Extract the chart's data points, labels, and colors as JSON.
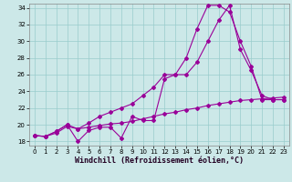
{
  "xlabel": "Windchill (Refroidissement éolien,°C)",
  "bg_color": "#cce8e8",
  "grid_color": "#99cccc",
  "line_color": "#990099",
  "xlim": [
    -0.5,
    23.5
  ],
  "ylim": [
    17.5,
    34.5
  ],
  "xticks": [
    0,
    1,
    2,
    3,
    4,
    5,
    6,
    7,
    8,
    9,
    10,
    11,
    12,
    13,
    14,
    15,
    16,
    17,
    18,
    19,
    20,
    21,
    22,
    23
  ],
  "yticks": [
    18,
    20,
    22,
    24,
    26,
    28,
    30,
    32,
    34
  ],
  "line1_x": [
    0,
    1,
    2,
    3,
    4,
    5,
    6,
    7,
    8,
    9,
    10,
    11,
    12,
    13,
    14,
    15,
    16,
    17,
    18,
    19,
    20,
    21,
    22,
    23
  ],
  "line1_y": [
    18.7,
    18.6,
    19.2,
    20.0,
    18.0,
    19.3,
    19.7,
    19.7,
    18.4,
    21.0,
    20.5,
    20.5,
    25.5,
    26.0,
    28.0,
    31.5,
    34.3,
    34.3,
    33.5,
    30.0,
    27.0,
    23.0,
    23.0,
    23.0
  ],
  "line2_x": [
    0,
    1,
    2,
    3,
    4,
    5,
    6,
    7,
    8,
    9,
    10,
    11,
    12,
    13,
    14,
    15,
    16,
    17,
    18,
    19,
    20,
    21,
    22,
    23
  ],
  "line2_y": [
    18.7,
    18.6,
    19.2,
    20.0,
    19.5,
    20.2,
    21.0,
    21.5,
    22.0,
    22.5,
    23.5,
    24.5,
    26.0,
    26.0,
    26.0,
    27.5,
    30.0,
    32.5,
    34.3,
    29.0,
    26.5,
    23.5,
    23.0,
    23.0
  ],
  "line3_x": [
    0,
    1,
    2,
    3,
    4,
    5,
    6,
    7,
    8,
    9,
    10,
    11,
    12,
    13,
    14,
    15,
    16,
    17,
    18,
    19,
    20,
    21,
    22,
    23
  ],
  "line3_y": [
    18.7,
    18.6,
    19.0,
    19.8,
    19.5,
    19.7,
    19.9,
    20.1,
    20.2,
    20.4,
    20.7,
    21.0,
    21.3,
    21.5,
    21.8,
    22.0,
    22.3,
    22.5,
    22.7,
    22.9,
    23.0,
    23.1,
    23.2,
    23.3
  ],
  "marker": "D",
  "markersize": 2.0,
  "linewidth": 0.8,
  "tick_fontsize": 5.0,
  "label_fontsize": 6.0
}
